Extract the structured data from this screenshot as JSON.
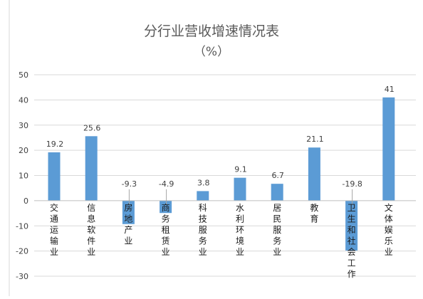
{
  "chart_data": {
    "type": "bar",
    "title": "分行业营收增速情况表",
    "subtitle": "（%）",
    "xlabel": "",
    "ylabel": "",
    "ylim": [
      -30,
      50
    ],
    "yticks": [
      -30,
      -20,
      -10,
      0,
      10,
      20,
      30,
      40,
      50
    ],
    "grid": true,
    "legend": "none",
    "bar_color": "#5b9bd5",
    "categories": [
      "交通运输业",
      "信息软件业",
      "房地产业",
      "商务租赁业",
      "科技服务业",
      "水利环境业",
      "居民服务业",
      "教育",
      "卫生和社会工作",
      "文体娱乐业"
    ],
    "values": [
      19.2,
      25.6,
      -9.3,
      -4.9,
      3.8,
      9.1,
      6.7,
      21.1,
      -19.8,
      41
    ],
    "data_labels": [
      "19.2",
      "25.6",
      "-9.3",
      "-4.9",
      "3.8",
      "9.1",
      "6.7",
      "21.1",
      "-19.8",
      "41"
    ]
  }
}
